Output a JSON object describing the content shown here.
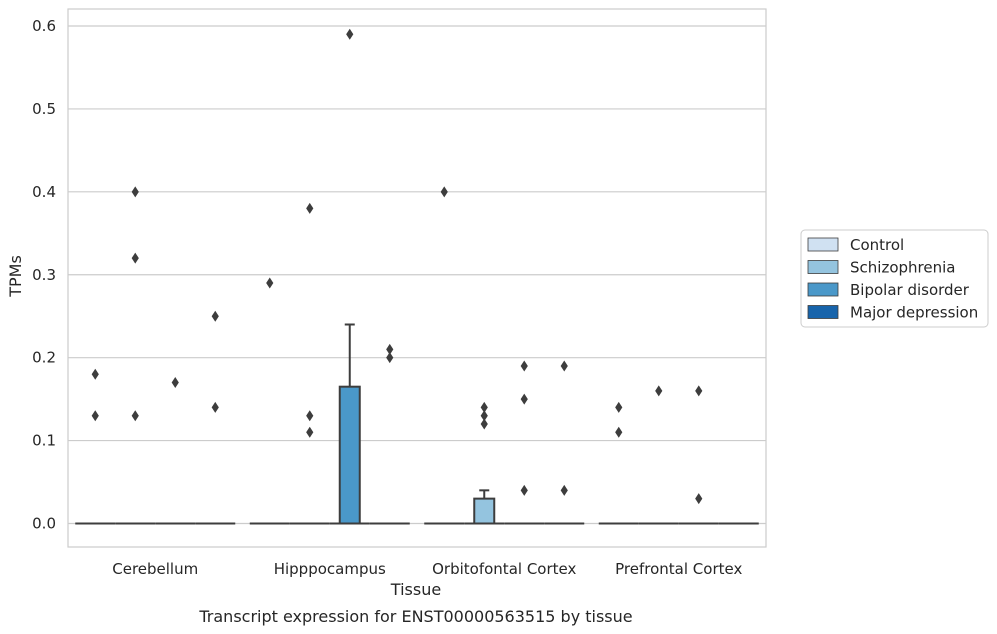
{
  "chart_data": {
    "type": "box",
    "title": "",
    "caption": "Transcript expression for ENST00000563515 by tissue",
    "xlabel": "Tissue",
    "ylabel": "TPMs",
    "ylim": [
      -0.03,
      0.62
    ],
    "yticks": [
      "0.0",
      "0.1",
      "0.2",
      "0.3",
      "0.4",
      "0.5",
      "0.6"
    ],
    "ytick_values": [
      0.0,
      0.1,
      0.2,
      0.3,
      0.4,
      0.5,
      0.6
    ],
    "grid": "y",
    "legend_position": "right",
    "categories": [
      "Cerebellum",
      "Hipppocampus",
      "Orbitofontal Cortex",
      "Prefrontal Cortex"
    ],
    "series": [
      {
        "name": "Control",
        "color": "#d0e1f2"
      },
      {
        "name": "Schizophrenia",
        "color": "#94c4df"
      },
      {
        "name": "Bipolar disorder",
        "color": "#4a98c9"
      },
      {
        "name": "Major depression",
        "color": "#1764ab"
      }
    ],
    "boxes": [
      {
        "category": 0,
        "series": 0,
        "q1": 0,
        "median": 0,
        "q3": 0,
        "whisker_low": 0,
        "whisker_high": 0,
        "outliers": [
          0.18,
          0.13
        ]
      },
      {
        "category": 0,
        "series": 1,
        "q1": 0,
        "median": 0,
        "q3": 0,
        "whisker_low": 0,
        "whisker_high": 0,
        "outliers": [
          0.4,
          0.32,
          0.13
        ]
      },
      {
        "category": 0,
        "series": 2,
        "q1": 0,
        "median": 0,
        "q3": 0,
        "whisker_low": 0,
        "whisker_high": 0,
        "outliers": [
          0.17
        ]
      },
      {
        "category": 0,
        "series": 3,
        "q1": 0,
        "median": 0,
        "q3": 0,
        "whisker_low": 0,
        "whisker_high": 0,
        "outliers": [
          0.25,
          0.14
        ]
      },
      {
        "category": 1,
        "series": 0,
        "q1": 0,
        "median": 0,
        "q3": 0,
        "whisker_low": 0,
        "whisker_high": 0,
        "outliers": [
          0.29
        ]
      },
      {
        "category": 1,
        "series": 1,
        "q1": 0,
        "median": 0,
        "q3": 0,
        "whisker_low": 0,
        "whisker_high": 0,
        "outliers": [
          0.38,
          0.13,
          0.11
        ]
      },
      {
        "category": 1,
        "series": 2,
        "q1": 0,
        "median": 0,
        "q3": 0.165,
        "whisker_low": 0,
        "whisker_high": 0.24,
        "outliers": [
          0.59
        ]
      },
      {
        "category": 1,
        "series": 3,
        "q1": 0,
        "median": 0,
        "q3": 0,
        "whisker_low": 0,
        "whisker_high": 0,
        "outliers": [
          0.21,
          0.2
        ]
      },
      {
        "category": 2,
        "series": 0,
        "q1": 0,
        "median": 0,
        "q3": 0,
        "whisker_low": 0,
        "whisker_high": 0,
        "outliers": [
          0.4
        ]
      },
      {
        "category": 2,
        "series": 1,
        "q1": 0,
        "median": 0,
        "q3": 0.03,
        "whisker_low": 0,
        "whisker_high": 0.04,
        "outliers": [
          0.14,
          0.13,
          0.12
        ]
      },
      {
        "category": 2,
        "series": 2,
        "q1": 0,
        "median": 0,
        "q3": 0,
        "whisker_low": 0,
        "whisker_high": 0,
        "outliers": [
          0.19,
          0.15,
          0.04
        ]
      },
      {
        "category": 2,
        "series": 3,
        "q1": 0,
        "median": 0,
        "q3": 0,
        "whisker_low": 0,
        "whisker_high": 0,
        "outliers": [
          0.19,
          0.04
        ]
      },
      {
        "category": 3,
        "series": 0,
        "q1": 0,
        "median": 0,
        "q3": 0,
        "whisker_low": 0,
        "whisker_high": 0,
        "outliers": [
          0.14,
          0.11
        ]
      },
      {
        "category": 3,
        "series": 1,
        "q1": 0,
        "median": 0,
        "q3": 0,
        "whisker_low": 0,
        "whisker_high": 0,
        "outliers": [
          0.16
        ]
      },
      {
        "category": 3,
        "series": 2,
        "q1": 0,
        "median": 0,
        "q3": 0,
        "whisker_low": 0,
        "whisker_high": 0,
        "outliers": [
          0.16,
          0.03
        ]
      },
      {
        "category": 3,
        "series": 3,
        "q1": 0,
        "median": 0,
        "q3": 0,
        "whisker_low": 0,
        "whisker_high": 0,
        "outliers": []
      }
    ]
  }
}
